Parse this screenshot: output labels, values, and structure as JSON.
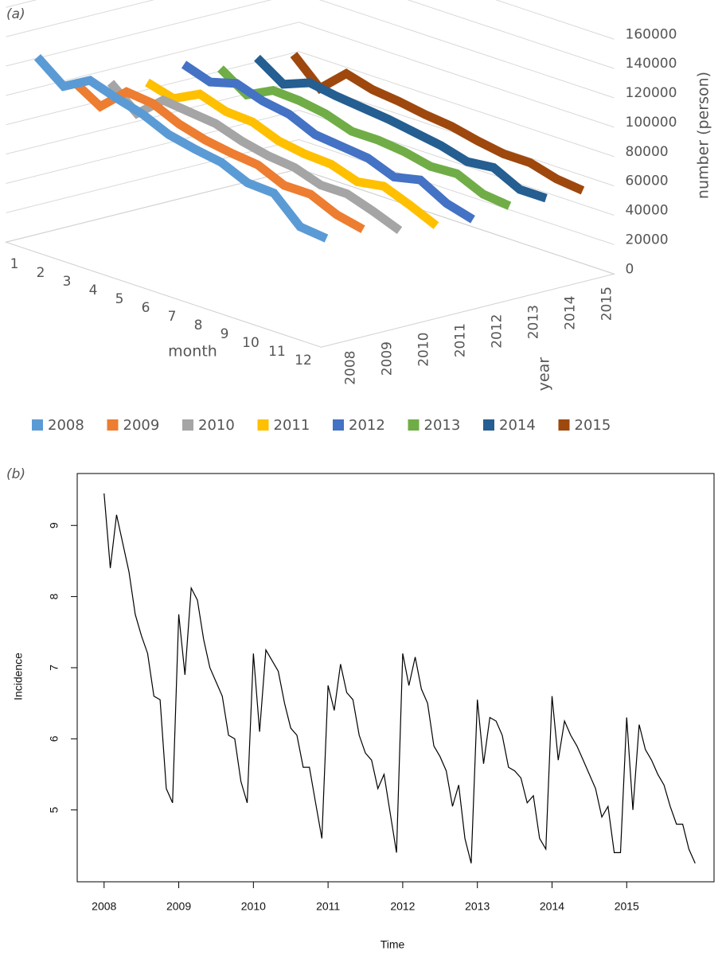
{
  "chart_data": [
    {
      "type": "ribbon",
      "panel_label": "(a)",
      "x_label": "month",
      "depth_label": "year",
      "y_label": "number (person)",
      "categories": [
        "1",
        "2",
        "3",
        "4",
        "5",
        "6",
        "7",
        "8",
        "9",
        "10",
        "11",
        "12"
      ],
      "ylim": [
        0,
        160000
      ],
      "yticks": [
        0,
        20000,
        40000,
        60000,
        80000,
        100000,
        120000,
        140000,
        160000
      ],
      "grid": true,
      "legend": "bottom",
      "series": [
        {
          "name": "2008",
          "color": "#5b9bd5",
          "values": [
            126000,
            112000,
            122000,
            116000,
            111000,
            103000,
            99000,
            96000,
            88000,
            87000,
            70000,
            68000
          ]
        },
        {
          "name": "2009",
          "color": "#ed7d31",
          "values": [
            103000,
            92000,
            108000,
            106000,
            98000,
            93000,
            90000,
            88000,
            80000,
            80000,
            72000,
            68000
          ]
        },
        {
          "name": "2010",
          "color": "#a5a5a5",
          "values": [
            96000,
            81000,
            96000,
            94000,
            92000,
            86000,
            82000,
            80000,
            74000,
            74000,
            68000,
            61000
          ]
        },
        {
          "name": "2011",
          "color": "#ffc000",
          "values": [
            90000,
            85000,
            94000,
            88000,
            87000,
            80000,
            77000,
            76000,
            70000,
            73000,
            66000,
            58000
          ]
        },
        {
          "name": "2012",
          "color": "#4472c4",
          "values": [
            96000,
            90000,
            95000,
            89000,
            86000,
            78000,
            76000,
            74000,
            67000,
            71000,
            61000,
            56000
          ]
        },
        {
          "name": "2013",
          "color": "#70ad47",
          "values": [
            87000,
            75000,
            84000,
            83000,
            80000,
            74000,
            74000,
            72000,
            68000,
            69000,
            61000,
            59000
          ]
        },
        {
          "name": "2014",
          "color": "#255e91",
          "values": [
            88000,
            76000,
            83000,
            80000,
            78000,
            76000,
            73000,
            70000,
            65000,
            67000,
            58000,
            58000
          ]
        },
        {
          "name": "2015",
          "color": "#9e480e",
          "values": [
            84000,
            67000,
            83000,
            78000,
            76000,
            73000,
            71000,
            67000,
            64000,
            64000,
            59000,
            57000
          ]
        }
      ]
    },
    {
      "type": "line",
      "panel_label": "(b)",
      "x_label": "Time",
      "y_label": "Incidence",
      "color": "#000000",
      "xlim": [
        2007.64,
        2016.17
      ],
      "ylim": [
        3.99,
        9.73
      ],
      "xticks": [
        2008,
        2009,
        2010,
        2011,
        2012,
        2013,
        2014,
        2015
      ],
      "yticks": [
        5,
        6,
        7,
        8,
        9
      ],
      "x": [
        2008,
        2008.083,
        2008.167,
        2008.25,
        2008.333,
        2008.417,
        2008.5,
        2008.583,
        2008.667,
        2008.75,
        2008.833,
        2008.917,
        2009,
        2009.083,
        2009.167,
        2009.25,
        2009.333,
        2009.417,
        2009.5,
        2009.583,
        2009.667,
        2009.75,
        2009.833,
        2009.917,
        2010,
        2010.083,
        2010.167,
        2010.25,
        2010.333,
        2010.417,
        2010.5,
        2010.583,
        2010.667,
        2010.75,
        2010.833,
        2010.917,
        2011,
        2011.083,
        2011.167,
        2011.25,
        2011.333,
        2011.417,
        2011.5,
        2011.583,
        2011.667,
        2011.75,
        2011.833,
        2011.917,
        2012,
        2012.083,
        2012.167,
        2012.25,
        2012.333,
        2012.417,
        2012.5,
        2012.583,
        2012.667,
        2012.75,
        2012.833,
        2012.917,
        2013,
        2013.083,
        2013.167,
        2013.25,
        2013.333,
        2013.417,
        2013.5,
        2013.583,
        2013.667,
        2013.75,
        2013.833,
        2013.917,
        2014,
        2014.083,
        2014.167,
        2014.25,
        2014.333,
        2014.417,
        2014.5,
        2014.583,
        2014.667,
        2014.75,
        2014.833,
        2014.917,
        2015,
        2015.083,
        2015.167,
        2015.25,
        2015.333,
        2015.417,
        2015.5,
        2015.583,
        2015.667,
        2015.75,
        2015.833,
        2015.917
      ],
      "values": [
        9.45,
        8.4,
        9.15,
        8.75,
        8.35,
        7.75,
        7.45,
        7.2,
        6.6,
        6.55,
        5.3,
        5.1,
        7.75,
        6.9,
        8.12,
        7.95,
        7.4,
        7.0,
        6.8,
        6.6,
        6.05,
        6.0,
        5.4,
        5.1,
        7.2,
        6.1,
        7.25,
        7.1,
        6.95,
        6.5,
        6.15,
        6.05,
        5.6,
        5.6,
        5.1,
        4.6,
        6.75,
        6.4,
        7.05,
        6.65,
        6.55,
        6.05,
        5.8,
        5.7,
        5.3,
        5.5,
        4.95,
        4.4,
        7.2,
        6.75,
        7.15,
        6.7,
        6.5,
        5.9,
        5.75,
        5.55,
        5.05,
        5.35,
        4.6,
        4.25,
        6.55,
        5.65,
        6.3,
        6.25,
        6.05,
        5.6,
        5.55,
        5.45,
        5.1,
        5.2,
        4.6,
        4.45,
        6.6,
        5.7,
        6.25,
        6.05,
        5.9,
        5.7,
        5.5,
        5.3,
        4.9,
        5.05,
        4.4,
        4.4,
        6.3,
        5.0,
        6.2,
        5.85,
        5.7,
        5.5,
        5.35,
        5.05,
        4.8,
        4.8,
        4.45,
        4.25
      ]
    }
  ]
}
